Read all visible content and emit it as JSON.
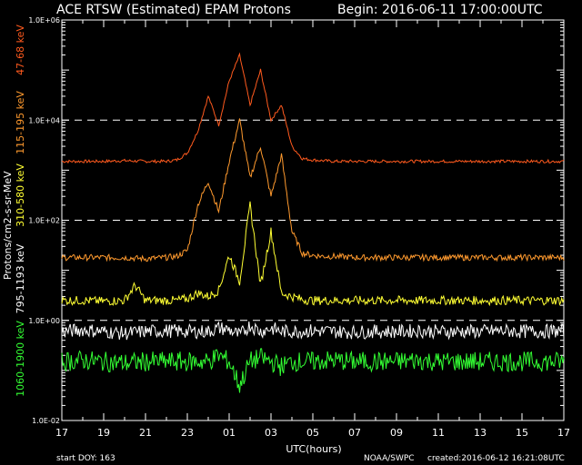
{
  "chart_data": {
    "type": "line",
    "title": "ACE RTSW (Estimated) EPAM Protons",
    "begin_label": "Begin: 2016-06-11 17:00:00UTC",
    "xlabel": "UTC(hours)",
    "ylabel": "Protons/cm2-s-sr-MeV",
    "yscale": "log",
    "ylim": [
      0.01,
      1000000
    ],
    "xlim": [
      0,
      24
    ],
    "x_tick_labels": [
      "17",
      "19",
      "21",
      "23",
      "01",
      "03",
      "05",
      "07",
      "09",
      "11",
      "13",
      "15",
      "17"
    ],
    "y_tick_labels": [
      {
        "value": 1000000,
        "label": "1.0E+06"
      },
      {
        "value": 10000,
        "label": "1.0E+04"
      },
      {
        "value": 100,
        "label": "1.0E+02"
      },
      {
        "value": 1,
        "label": "1.0E+00"
      },
      {
        "value": 0.01,
        "label": "1.0E-02"
      }
    ],
    "dashed_gridlines": [
      10000,
      100,
      1
    ],
    "series": [
      {
        "name": "47-68 keV",
        "color": "#ff5a1e",
        "x": [
          0,
          1,
          2,
          3,
          4,
          5,
          5.5,
          6,
          6.5,
          7,
          7.5,
          8,
          8.5,
          9,
          9.5,
          10,
          10.5,
          11,
          11.5,
          12,
          12.5,
          13,
          14,
          15,
          16,
          17,
          18,
          20,
          22,
          24
        ],
        "y": [
          1500,
          1500,
          1500,
          1550,
          1500,
          1500,
          1600,
          2200,
          6000,
          30000,
          8000,
          60000,
          200000,
          20000,
          100000,
          10000,
          20000,
          3000,
          1700,
          1600,
          1550,
          1500,
          1500,
          1500,
          1500,
          1500,
          1500,
          1500,
          1500,
          1500
        ]
      },
      {
        "name": "115-195 keV",
        "color": "#ff9a2e",
        "x": [
          0,
          1,
          2,
          3,
          4,
          5,
          5.5,
          6,
          6.5,
          7,
          7.5,
          8,
          8.5,
          9,
          9.5,
          10,
          10.5,
          11,
          11.5,
          12,
          12.5,
          13,
          14,
          15,
          16,
          17,
          18,
          20,
          22,
          24
        ],
        "y": [
          18,
          18,
          18,
          18,
          17,
          18,
          19,
          25,
          200,
          600,
          150,
          1500,
          10000,
          700,
          3000,
          300,
          2000,
          60,
          22,
          20,
          19,
          19,
          18,
          18,
          18,
          18,
          18,
          18,
          18,
          18
        ]
      },
      {
        "name": "310-580 keV",
        "color": "#ffff33",
        "x": [
          0,
          1,
          2,
          3,
          3.5,
          4,
          5,
          5.5,
          6,
          6.5,
          7,
          7.5,
          8,
          8.5,
          9,
          9.5,
          10,
          10.5,
          11,
          11.5,
          12,
          13,
          14,
          15,
          16,
          17,
          18,
          20,
          22,
          24
        ],
        "y": [
          2.5,
          2.5,
          2.4,
          2.5,
          5,
          2.5,
          2.5,
          2.5,
          2.7,
          3.5,
          3,
          4,
          20,
          6,
          200,
          5,
          60,
          3.5,
          3,
          2.6,
          2.5,
          2.5,
          2.5,
          2.5,
          2.5,
          2.5,
          2.5,
          2.5,
          2.5,
          2.5
        ]
      },
      {
        "name": "795-1193 keV",
        "color": "#ffffff",
        "x": [
          0,
          1,
          2,
          3,
          4,
          5,
          6,
          7,
          7.5,
          8,
          8.5,
          9,
          9.5,
          10,
          10.5,
          11,
          12,
          13,
          14,
          15,
          16,
          17,
          18,
          19,
          20,
          21,
          22,
          23,
          24
        ],
        "y": [
          0.6,
          0.65,
          0.6,
          0.55,
          0.6,
          0.62,
          0.6,
          0.6,
          0.7,
          0.65,
          0.5,
          0.8,
          0.6,
          0.7,
          0.6,
          0.6,
          0.62,
          0.6,
          0.58,
          0.6,
          0.6,
          0.62,
          0.6,
          0.6,
          0.6,
          0.62,
          0.6,
          0.6,
          0.62
        ]
      },
      {
        "name": "1060-1900 keV",
        "color": "#33ff33",
        "x": [
          0,
          1,
          2,
          3,
          4,
          5,
          6,
          7,
          7.5,
          8,
          8.5,
          9,
          9.5,
          10,
          10.5,
          11,
          12,
          13,
          14,
          15,
          16,
          17,
          18,
          19,
          20,
          21,
          22,
          23,
          24
        ],
        "y": [
          0.15,
          0.16,
          0.15,
          0.14,
          0.15,
          0.15,
          0.15,
          0.15,
          0.2,
          0.15,
          0.05,
          0.15,
          0.18,
          0.15,
          0.12,
          0.15,
          0.15,
          0.16,
          0.15,
          0.15,
          0.15,
          0.16,
          0.15,
          0.15,
          0.15,
          0.15,
          0.15,
          0.15,
          0.15
        ]
      }
    ]
  },
  "footer": {
    "start_doy": "start DOY:  163",
    "source": "NOAA/SWPC",
    "created": "created:2016-06-12 16:21:08UTC"
  }
}
